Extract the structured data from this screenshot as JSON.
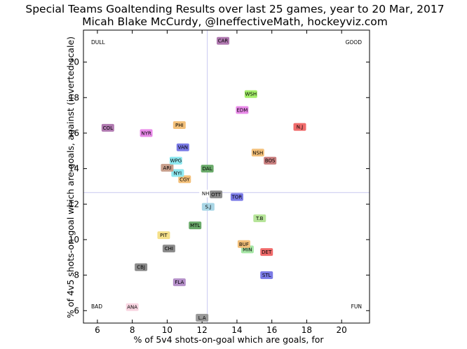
{
  "title_line1": "Special Teams Goaltending Results over last 25 games, year to 20 Mar, 2017",
  "title_line2": "Micah Blake McCurdy, @IneffectiveMath, hockeyviz.com",
  "chart_data": {
    "type": "scatter",
    "xlabel": "% of 5v4 shots-on-goal which are goals, for",
    "ylabel": "% of 4v5 shots-on-goal which are goals, against (inverted scale)",
    "xlim": [
      5.2,
      21.6
    ],
    "ylim": [
      21.8,
      5.3
    ],
    "y_inverted": true,
    "grid": false,
    "xticks": [
      "6",
      "8",
      "10",
      "12",
      "14",
      "16",
      "18",
      "20"
    ],
    "yticks": [
      "6",
      "8",
      "10",
      "12",
      "14",
      "16",
      "18",
      "20"
    ],
    "reference_lines": {
      "x": 12.3,
      "y": 12.65
    },
    "corner_labels": {
      "top_left": "DULL",
      "top_right": "GOOD",
      "bottom_left": "BAD",
      "bottom_right": "FUN"
    },
    "points": [
      {
        "team": "L.A",
        "x": 12.0,
        "y": 5.6,
        "color": "#999999"
      },
      {
        "team": "ANA",
        "x": 8.0,
        "y": 6.2,
        "color": "#f9d6e2"
      },
      {
        "team": "FLA",
        "x": 10.7,
        "y": 7.6,
        "color": "#b48fc8"
      },
      {
        "team": "STL",
        "x": 15.7,
        "y": 8.0,
        "color": "#7a7ae6"
      },
      {
        "team": "CBJ",
        "x": 8.5,
        "y": 8.45,
        "color": "#8c8c8c"
      },
      {
        "team": "DET",
        "x": 15.7,
        "y": 9.3,
        "color": "#f06b6b"
      },
      {
        "team": "CHI",
        "x": 10.1,
        "y": 9.5,
        "color": "#8c8c8c"
      },
      {
        "team": "MIN",
        "x": 14.6,
        "y": 9.45,
        "color": "#a5e6a5"
      },
      {
        "team": "BUF",
        "x": 14.4,
        "y": 9.75,
        "color": "#f3c07a"
      },
      {
        "team": "PIT",
        "x": 9.8,
        "y": 10.25,
        "color": "#f5e08a"
      },
      {
        "team": "MTL",
        "x": 11.6,
        "y": 10.8,
        "color": "#6aaa6a"
      },
      {
        "team": "T.B",
        "x": 15.3,
        "y": 11.2,
        "color": "#b7e59a"
      },
      {
        "team": "S.J",
        "x": 12.35,
        "y": 11.85,
        "color": "#a9d6e6"
      },
      {
        "team": "TOR",
        "x": 14.0,
        "y": 12.4,
        "color": "#7a7ae6"
      },
      {
        "team": "NH",
        "x": 12.2,
        "y": 12.6,
        "color": "#ffffff",
        "label_color": "#ff0000"
      },
      {
        "team": "OTT",
        "x": 12.8,
        "y": 12.55,
        "color": "#8c8c8c"
      },
      {
        "team": "CGY",
        "x": 11.0,
        "y": 13.4,
        "color": "#f3c07a"
      },
      {
        "team": "NYI",
        "x": 10.6,
        "y": 13.75,
        "color": "#8ee8f0"
      },
      {
        "team": "ARI",
        "x": 10.0,
        "y": 14.05,
        "color": "#c89f8c"
      },
      {
        "team": "DAL",
        "x": 12.3,
        "y": 14.0,
        "color": "#6aaa6a"
      },
      {
        "team": "WPG",
        "x": 10.5,
        "y": 14.45,
        "color": "#8ee8f0"
      },
      {
        "team": "BOS",
        "x": 15.9,
        "y": 14.45,
        "color": "#c97f7f"
      },
      {
        "team": "NSH",
        "x": 15.2,
        "y": 14.9,
        "color": "#f3c07a"
      },
      {
        "team": "VAN",
        "x": 10.9,
        "y": 15.2,
        "color": "#7a7ae6"
      },
      {
        "team": "NYR",
        "x": 8.8,
        "y": 16.0,
        "color": "#e98ae9"
      },
      {
        "team": "COL",
        "x": 6.6,
        "y": 16.3,
        "color": "#b079b0"
      },
      {
        "team": "N.J",
        "x": 17.6,
        "y": 16.35,
        "color": "#f06b6b"
      },
      {
        "team": "PHI",
        "x": 10.7,
        "y": 16.45,
        "color": "#f3c07a"
      },
      {
        "team": "EDM",
        "x": 14.3,
        "y": 17.3,
        "color": "#e98ae9"
      },
      {
        "team": "WSH",
        "x": 14.8,
        "y": 18.2,
        "color": "#a5f06b"
      },
      {
        "team": "CAR",
        "x": 13.2,
        "y": 21.2,
        "color": "#b079b0"
      }
    ]
  }
}
